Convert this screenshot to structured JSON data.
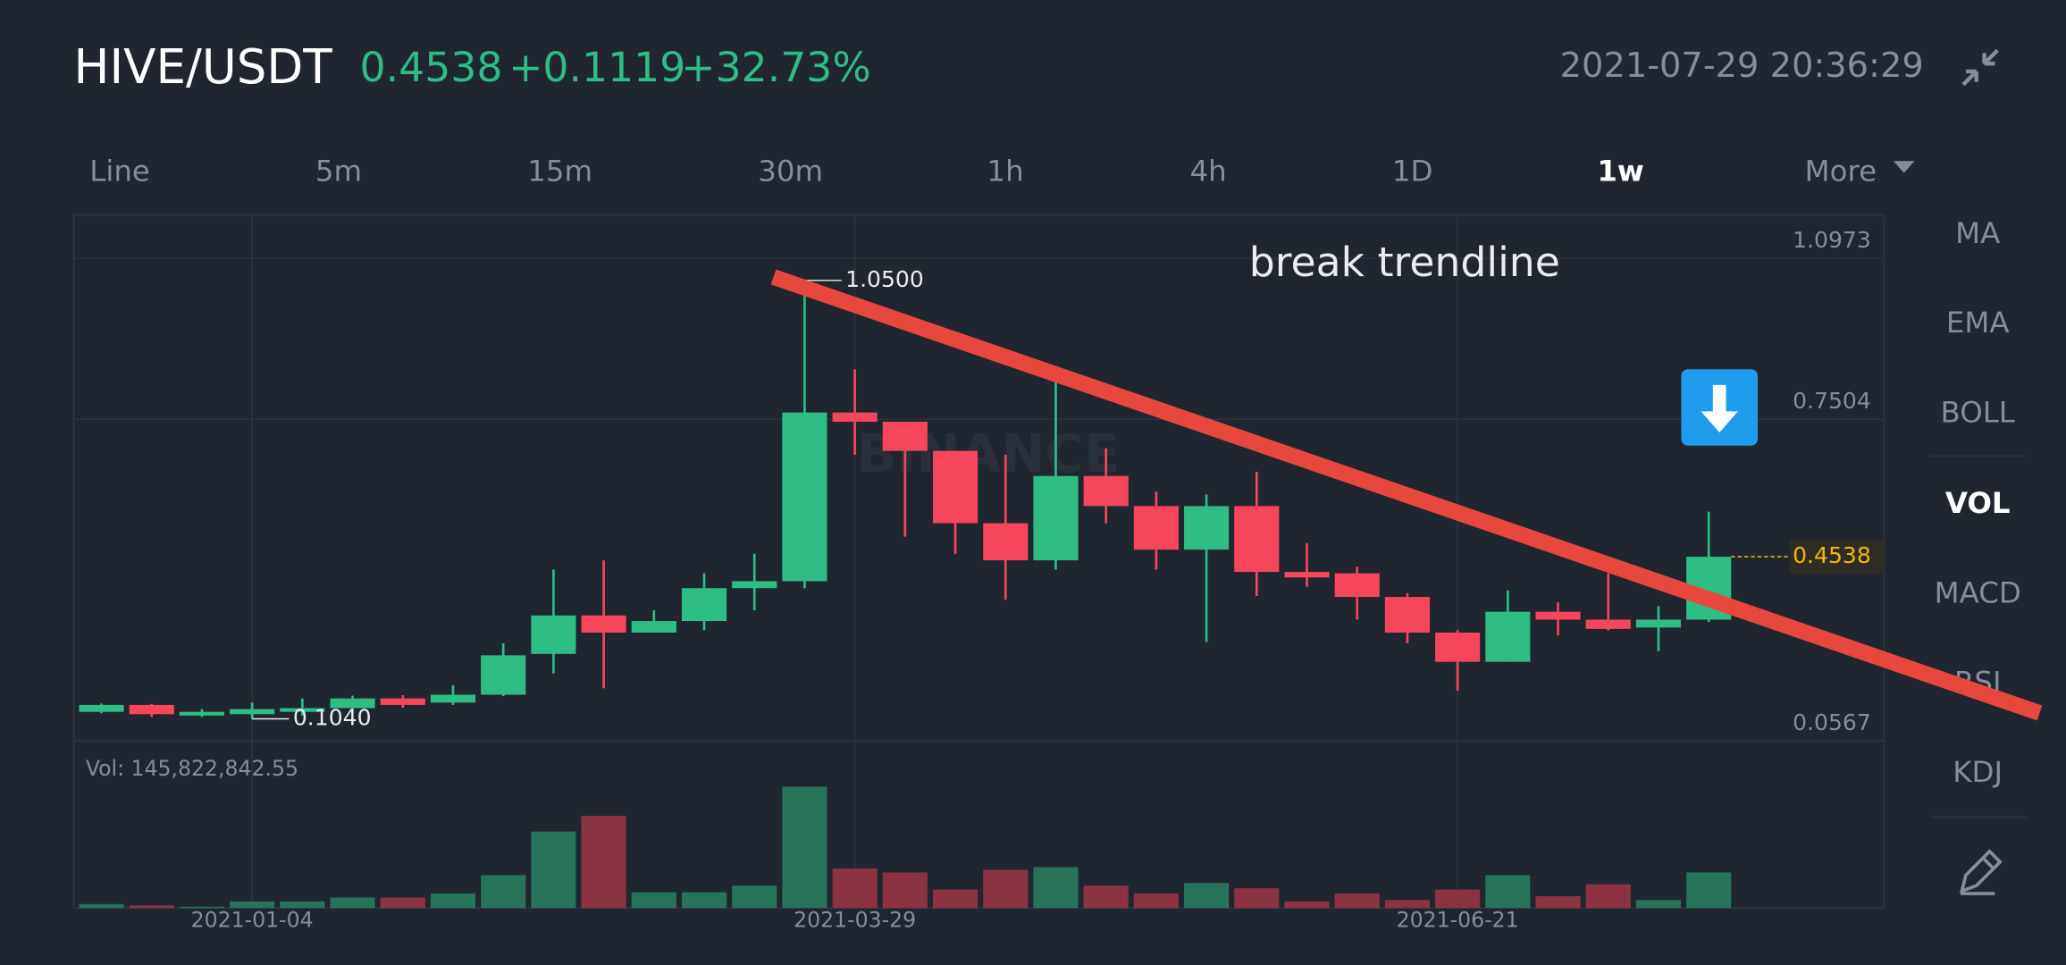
{
  "header": {
    "pair": "HIVE/USDT",
    "price": "0.4538",
    "change": "+0.1119",
    "change_percent": "+32.73%",
    "timestamp": "2021-07-29 20:36:29"
  },
  "tabs": [
    "Line",
    "5m",
    "15m",
    "30m",
    "1h",
    "4h",
    "1D",
    "1w",
    "More"
  ],
  "active_tab": 7,
  "indicators": [
    "MA",
    "EMA",
    "BOLL",
    "VOL",
    "MACD",
    "RSI",
    "KDJ"
  ],
  "active_indicator": 3,
  "chart_data": {
    "type": "candlestick",
    "annotation": "break trendline",
    "watermark": "BINANCE",
    "categories": [
      null,
      null,
      null,
      "2021-01-04",
      null,
      null,
      null,
      null,
      null,
      null,
      null,
      null,
      null,
      null,
      null,
      "2021-03-29",
      null,
      null,
      null,
      null,
      null,
      null,
      null,
      null,
      null,
      null,
      null,
      "2021-06-21",
      null,
      null,
      null,
      null,
      null
    ],
    "open": [
      0.119,
      0.134,
      0.111,
      0.114,
      0.119,
      0.127,
      0.148,
      0.139,
      0.156,
      0.244,
      0.327,
      0.29,
      0.315,
      0.386,
      0.401,
      0.765,
      0.745,
      0.682,
      0.526,
      0.446,
      0.628,
      0.563,
      0.469,
      0.563,
      0.421,
      0.418,
      0.367,
      0.29,
      0.227,
      0.335,
      0.318,
      0.301,
      0.318
    ],
    "high": [
      0.137,
      0.136,
      0.125,
      0.139,
      0.148,
      0.154,
      0.155,
      0.176,
      0.267,
      0.426,
      0.446,
      0.338,
      0.418,
      0.46,
      1.05,
      0.858,
      0.745,
      0.682,
      0.674,
      0.83,
      0.688,
      0.594,
      0.588,
      0.637,
      0.483,
      0.432,
      0.375,
      0.295,
      0.381,
      0.355,
      0.418,
      0.347,
      0.551
    ],
    "low": [
      0.116,
      0.108,
      0.108,
      0.104,
      0.111,
      0.122,
      0.128,
      0.134,
      0.153,
      0.202,
      0.17,
      0.29,
      0.295,
      0.338,
      0.386,
      0.674,
      0.497,
      0.46,
      0.361,
      0.426,
      0.526,
      0.426,
      0.27,
      0.369,
      0.389,
      0.318,
      0.267,
      0.165,
      0.227,
      0.284,
      0.295,
      0.25,
      0.313
    ],
    "close": [
      0.134,
      0.114,
      0.119,
      0.125,
      0.127,
      0.148,
      0.134,
      0.156,
      0.241,
      0.327,
      0.29,
      0.315,
      0.386,
      0.401,
      0.765,
      0.745,
      0.682,
      0.526,
      0.446,
      0.628,
      0.563,
      0.469,
      0.563,
      0.421,
      0.409,
      0.367,
      0.29,
      0.227,
      0.335,
      0.318,
      0.298,
      0.318,
      0.4538
    ],
    "volume": [
      16200000,
      10800000,
      5400000,
      27000000,
      27000000,
      43200000,
      43200000,
      59400000,
      135000000,
      313200000,
      378000000,
      64800000,
      64800000,
      91800000,
      496800000,
      162000000,
      145800000,
      75600000,
      156600000,
      167400000,
      91800000,
      59400000,
      102600000,
      81000000,
      27000000,
      59400000,
      32400000,
      75600000,
      135000000,
      48600000,
      97200000,
      32400000,
      145822842.55
    ],
    "volume_label": "Vol: 145,822,842.55",
    "up_color": "#2ebd85",
    "down_color": "#f6465d",
    "up_volume_color": "#27745a",
    "down_volume_color": "#8b3343",
    "ylim": [
      0.0567,
      1.191
    ],
    "yticks": [
      0.0567,
      0.7504,
      1.0973
    ],
    "volume_ylim": [
      0,
      653000000
    ],
    "last_price": {
      "value": 0.4538,
      "label": "0.4538"
    },
    "max_label": {
      "value": 1.05,
      "label": "1.0500"
    },
    "min_label": {
      "value": 0.104,
      "label": "0.1040"
    }
  }
}
